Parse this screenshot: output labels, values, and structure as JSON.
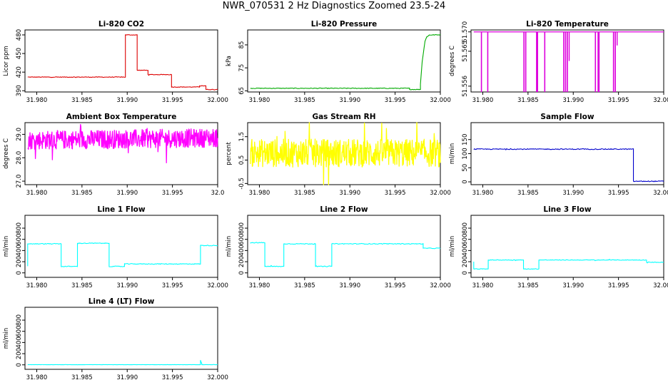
{
  "title": "NWR_070531  2 Hz Diagnostics Zoomed 23.5-24",
  "colors": {
    "co2": "#dd0000",
    "pressure": "#00aa00",
    "temperature": "#dd00dd",
    "box_temp": "#ff00ff",
    "rh": "#ffff00",
    "sample_flow": "#0000cc",
    "line_flow": "#00ffff"
  },
  "chart_data": [
    {
      "id": "co2",
      "type": "line",
      "title": "Li-820 CO2",
      "xlabel": "",
      "ylabel": "Licor ppm",
      "xlim": [
        31.9787,
        32.0
      ],
      "ylim": [
        388,
        488
      ],
      "yticks": [
        390,
        420,
        450,
        480
      ],
      "ytick_labels": [
        "390",
        "420",
        "450",
        "480"
      ],
      "xticks": [
        31.98,
        31.985,
        31.99,
        31.995,
        32.0
      ],
      "xtick_labels": [
        "31.980",
        "31.985",
        "31.990",
        "31.995",
        "32.000"
      ],
      "color_key": "co2",
      "noise": 0.5,
      "series": [
        {
          "name": "CO2",
          "x": [
            31.979,
            31.9898,
            31.9898,
            31.9911,
            31.9911,
            31.9923,
            31.9923,
            31.9949,
            31.9949,
            31.998,
            31.998,
            31.9987,
            31.9987,
            32.0
          ],
          "y": [
            412,
            412,
            480,
            480,
            423,
            423,
            416,
            416,
            396,
            396,
            398,
            398,
            392,
            392
          ]
        }
      ]
    },
    {
      "id": "pressure",
      "type": "line",
      "title": "Li-820 Pressure",
      "xlabel": "",
      "ylabel": "kPa",
      "xlim": [
        31.9787,
        32.0
      ],
      "ylim": [
        64.5,
        91.5
      ],
      "yticks": [
        65,
        75,
        85
      ],
      "ytick_labels": [
        "65",
        "75",
        "85"
      ],
      "xticks": [
        31.98,
        31.985,
        31.99,
        31.995,
        32.0
      ],
      "xtick_labels": [
        "31.980",
        "31.985",
        "31.990",
        "31.995",
        "32.000"
      ],
      "color_key": "pressure",
      "noise": 0.15,
      "series": [
        {
          "name": "Pressure",
          "x": [
            31.979,
            31.9966,
            31.9966,
            31.9978,
            31.9978,
            31.998,
            31.9983,
            31.9985,
            31.9988,
            32.0
          ],
          "y": [
            66.1,
            66.1,
            65.6,
            65.6,
            68,
            78,
            86.5,
            88.5,
            89.3,
            89.4
          ]
        }
      ]
    },
    {
      "id": "temperature",
      "type": "line",
      "title": "Li-820 Temperature",
      "xlabel": "",
      "ylabel": "degrees C",
      "xlim": [
        31.9787,
        32.0
      ],
      "ylim": [
        51.5545,
        51.5705
      ],
      "yticks": [
        51.556,
        51.565,
        51.57
      ],
      "ytick_labels": [
        "51.556",
        "51.565",
        "51.570"
      ],
      "xticks": [
        31.98,
        31.985,
        31.99,
        31.995,
        32.0
      ],
      "xtick_labels": [
        "31.980",
        "31.985",
        "31.990",
        "31.995",
        "32.000"
      ],
      "color_key": "temperature",
      "noise": 0,
      "series": [
        {
          "name": "Temperature",
          "baseline": 51.57,
          "spike_to": 51.5545,
          "x_range": [
            31.979,
            32.0
          ],
          "spikes": [
            31.97985,
            31.98055,
            31.98455,
            31.98475,
            31.98595,
            31.98605,
            31.98685,
            31.98895,
            31.98915,
            31.98935,
            31.99245,
            31.99275,
            31.99285,
            31.99445,
            31.99465
          ],
          "partial_spikes": [
            [
              31.98955,
              51.5625
            ],
            [
              31.99485,
              51.5665
            ]
          ]
        }
      ]
    },
    {
      "id": "box_temp",
      "type": "line",
      "title": "Ambient Box Temperature",
      "xlabel": "",
      "ylabel": "degrees C",
      "xlim": [
        31.9787,
        32.0
      ],
      "ylim": [
        26.85,
        29.5
      ],
      "yticks": [
        27.0,
        28.0,
        29.0
      ],
      "ytick_labels": [
        "27.0",
        "28.0",
        "29.0"
      ],
      "xticks": [
        31.98,
        31.985,
        31.99,
        31.995,
        32.0
      ],
      "xtick_labels": [
        "31.980",
        "31.985",
        "31.990",
        "31.995",
        "32.0"
      ],
      "color_key": "box_temp",
      "noise": 0.4,
      "series": [
        {
          "name": "Box Temp",
          "x": [
            31.979,
            32.0
          ],
          "y": [
            28.75,
            28.85
          ]
        }
      ]
    },
    {
      "id": "rh",
      "type": "line",
      "title": "Gas Stream RH",
      "xlabel": "",
      "ylabel": "percent",
      "xlim": [
        31.9787,
        32.0
      ],
      "ylim": [
        -0.55,
        2.1
      ],
      "yticks": [
        -0.5,
        0.5,
        1.5
      ],
      "ytick_labels": [
        "-0.5",
        "0.5",
        "1.5"
      ],
      "xticks": [
        31.98,
        31.985,
        31.99,
        31.995,
        32.0
      ],
      "xtick_labels": [
        "31.980",
        "31.985",
        "31.990",
        "31.995",
        "32.000"
      ],
      "color_key": "rh",
      "noise": 0.6,
      "series": [
        {
          "name": "RH",
          "x": [
            31.979,
            32.0
          ],
          "y": [
            0.8,
            0.8
          ]
        }
      ]
    },
    {
      "id": "sample_flow",
      "type": "line",
      "title": "Sample Flow",
      "xlabel": "",
      "ylabel": "ml/min",
      "xlim": [
        31.9787,
        32.0
      ],
      "ylim": [
        -10,
        210
      ],
      "yticks": [
        0,
        50,
        100,
        150
      ],
      "ytick_labels": [
        "0",
        "50",
        "100",
        "150"
      ],
      "xticks": [
        31.98,
        31.985,
        31.99,
        31.995,
        32.0
      ],
      "xtick_labels": [
        "31.980",
        "31.985",
        "31.990",
        "31.995",
        "32.000"
      ],
      "color_key": "sample_flow",
      "noise": 1.5,
      "series": [
        {
          "name": "Sample Flow",
          "x": [
            31.979,
            31.99665,
            31.99665,
            32.0
          ],
          "y": [
            116,
            116,
            2,
            2
          ]
        }
      ]
    },
    {
      "id": "line1",
      "type": "line",
      "title": "Line 1 Flow",
      "xlabel": "",
      "ylabel": "ml/min",
      "xlim": [
        31.9787,
        32.0
      ],
      "ylim": [
        -80,
        1030
      ],
      "yticks": [
        0,
        200,
        400,
        600,
        800
      ],
      "ytick_labels": [
        "0",
        "200",
        "400",
        "600",
        "800"
      ],
      "xticks": [
        31.98,
        31.985,
        31.99,
        31.995,
        32.0
      ],
      "xtick_labels": [
        "31.980",
        "31.985",
        "31.990",
        "31.995",
        "32.000"
      ],
      "color_key": "line_flow",
      "noise": 7,
      "series": [
        {
          "name": "Line 1",
          "x": [
            31.979,
            31.979,
            31.9827,
            31.9827,
            31.9845,
            31.9845,
            31.988,
            31.988,
            31.9897,
            31.9897,
            31.9981,
            31.9981,
            32.0
          ],
          "y": [
            120,
            520,
            520,
            115,
            115,
            530,
            530,
            115,
            115,
            160,
            160,
            490,
            490
          ]
        }
      ]
    },
    {
      "id": "line2",
      "type": "line",
      "title": "Line 2 Flow",
      "xlabel": "",
      "ylabel": "ml/min",
      "xlim": [
        31.9787,
        32.0
      ],
      "ylim": [
        -80,
        1030
      ],
      "yticks": [
        0,
        200,
        400,
        600,
        800
      ],
      "ytick_labels": [
        "0",
        "200",
        "400",
        "600",
        "800"
      ],
      "xticks": [
        31.98,
        31.985,
        31.99,
        31.995,
        32.0
      ],
      "xtick_labels": [
        "31.980",
        "31.985",
        "31.990",
        "31.995",
        "32.000"
      ],
      "color_key": "line_flow",
      "noise": 7,
      "series": [
        {
          "name": "Line 2",
          "x": [
            31.979,
            31.979,
            31.9806,
            31.9806,
            31.9827,
            31.9827,
            31.9862,
            31.9862,
            31.988,
            31.988,
            31.9981,
            31.9981,
            32.0
          ],
          "y": [
            540,
            540,
            540,
            115,
            115,
            520,
            520,
            115,
            115,
            520,
            520,
            440,
            440
          ]
        }
      ]
    },
    {
      "id": "line3",
      "type": "line",
      "title": "Line 3 Flow",
      "xlabel": "",
      "ylabel": "ml/min",
      "xlim": [
        31.9787,
        32.0
      ],
      "ylim": [
        -80,
        1030
      ],
      "yticks": [
        0,
        200,
        400,
        600,
        800
      ],
      "ytick_labels": [
        "0",
        "200",
        "400",
        "600",
        "800"
      ],
      "xticks": [
        31.98,
        31.985,
        31.99,
        31.995,
        32.0
      ],
      "xtick_labels": [
        "31.980",
        "31.985",
        "31.990",
        "31.995",
        "32.000"
      ],
      "color_key": "line_flow",
      "noise": 5,
      "series": [
        {
          "name": "Line 3",
          "x": [
            31.979,
            31.979,
            31.9806,
            31.9806,
            31.9845,
            31.9845,
            31.9862,
            31.9862,
            31.9981,
            31.9981,
            32.0
          ],
          "y": [
            200,
            70,
            70,
            230,
            230,
            70,
            70,
            230,
            230,
            190,
            190
          ]
        }
      ]
    },
    {
      "id": "line4",
      "type": "line",
      "title": "Line 4 (LT) Flow",
      "xlabel": "",
      "ylabel": "ml/min",
      "xlim": [
        31.9787,
        32.0
      ],
      "ylim": [
        -80,
        1030
      ],
      "yticks": [
        0,
        200,
        400,
        600,
        800
      ],
      "ytick_labels": [
        "0",
        "200",
        "400",
        "600",
        "800"
      ],
      "xticks": [
        31.98,
        31.985,
        31.99,
        31.995,
        32.0
      ],
      "xtick_labels": [
        "31.980",
        "31.985",
        "31.990",
        "31.995",
        "32.000"
      ],
      "color_key": "line_flow",
      "noise": 1.5,
      "series": [
        {
          "name": "Line 4",
          "x": [
            31.979,
            31.9981,
            31.9981,
            31.99825,
            31.99825,
            32.0
          ],
          "y": [
            3,
            3,
            80,
            20,
            3,
            3
          ]
        }
      ]
    }
  ]
}
